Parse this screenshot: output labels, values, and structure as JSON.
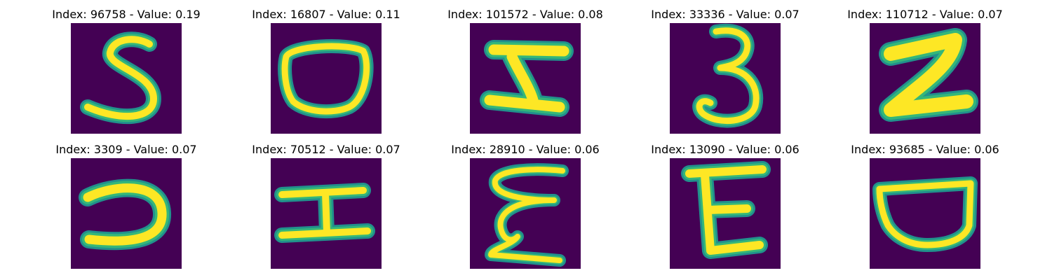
{
  "colors": {
    "background": "#440154",
    "stroke_core": "#fde725",
    "stroke_mid": "#35b779",
    "stroke_edge": "#21918c"
  },
  "panels": [
    {
      "title": "Index: 96758 - Value: 0.19",
      "glyph": "5"
    },
    {
      "title": "Index: 16807 - Value: 0.11",
      "glyph": "0"
    },
    {
      "title": "Index: 101572 - Value: 0.08",
      "glyph": "H-slant"
    },
    {
      "title": "Index: 33336 - Value: 0.07",
      "glyph": "3"
    },
    {
      "title": "Index: 110712 - Value: 0.07",
      "glyph": "2"
    },
    {
      "title": "Index: 3309 - Value: 0.07",
      "glyph": "reversed-C"
    },
    {
      "title": "Index: 70512 - Value: 0.07",
      "glyph": "H-rotated"
    },
    {
      "title": "Index: 28910 - Value: 0.06",
      "glyph": "epsilon"
    },
    {
      "title": "Index: 13090 - Value: 0.06",
      "glyph": "E"
    },
    {
      "title": "Index: 93685 - Value: 0.06",
      "glyph": "cup"
    }
  ]
}
